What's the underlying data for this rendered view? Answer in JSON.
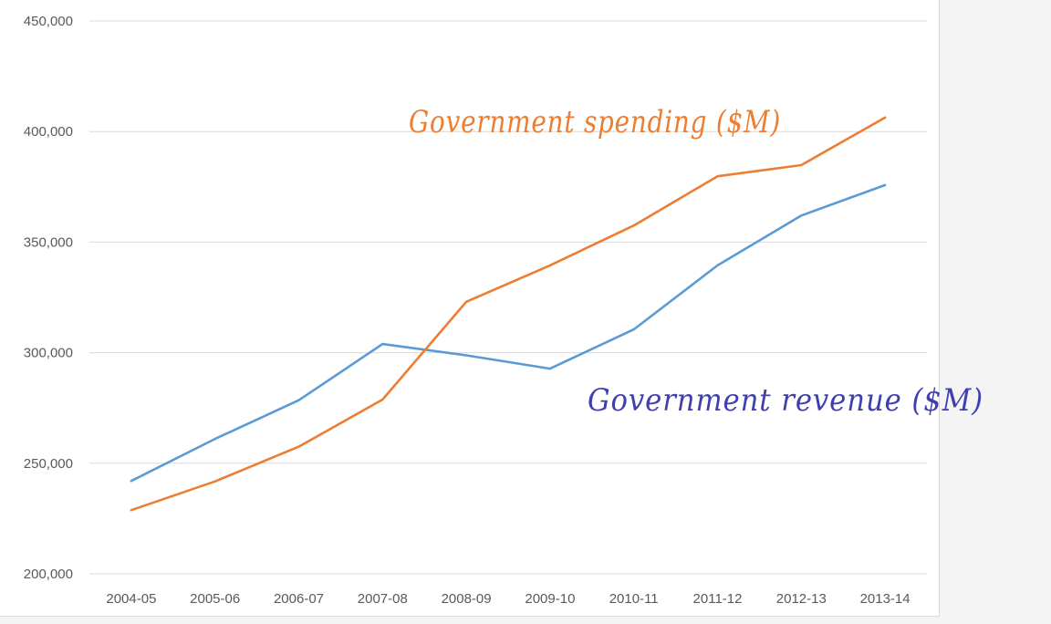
{
  "chart_data": {
    "type": "line",
    "categories": [
      "2004-05",
      "2005-06",
      "2006-07",
      "2007-08",
      "2008-09",
      "2009-10",
      "2010-11",
      "2011-12",
      "2012-13",
      "2013-14"
    ],
    "series": [
      {
        "name": "Government revenue ($M)",
        "color": "#5b9bd5",
        "values": [
          242000,
          261000,
          278500,
          303900,
          298800,
          292800,
          310500,
          339500,
          362000,
          375800
        ]
      },
      {
        "name": "Government spending ($M)",
        "color": "#ed7d31",
        "values": [
          228800,
          241800,
          257500,
          278800,
          323000,
          339500,
          357500,
          379800,
          384800,
          406300
        ]
      }
    ],
    "ylim": [
      200000,
      450000
    ],
    "yticks": [
      200000,
      250000,
      300000,
      350000,
      400000,
      450000
    ],
    "ytick_labels": [
      "200,000",
      "250,000",
      "300,000",
      "350,000",
      "400,000",
      "450,000"
    ],
    "grid": true,
    "title": "",
    "xlabel": "",
    "ylabel": "",
    "annotations": [
      {
        "text": "Government spending ($M)",
        "color": "#ed7d31"
      },
      {
        "text": "Government revenue ($M)",
        "color": "#3f3fb0"
      }
    ]
  }
}
